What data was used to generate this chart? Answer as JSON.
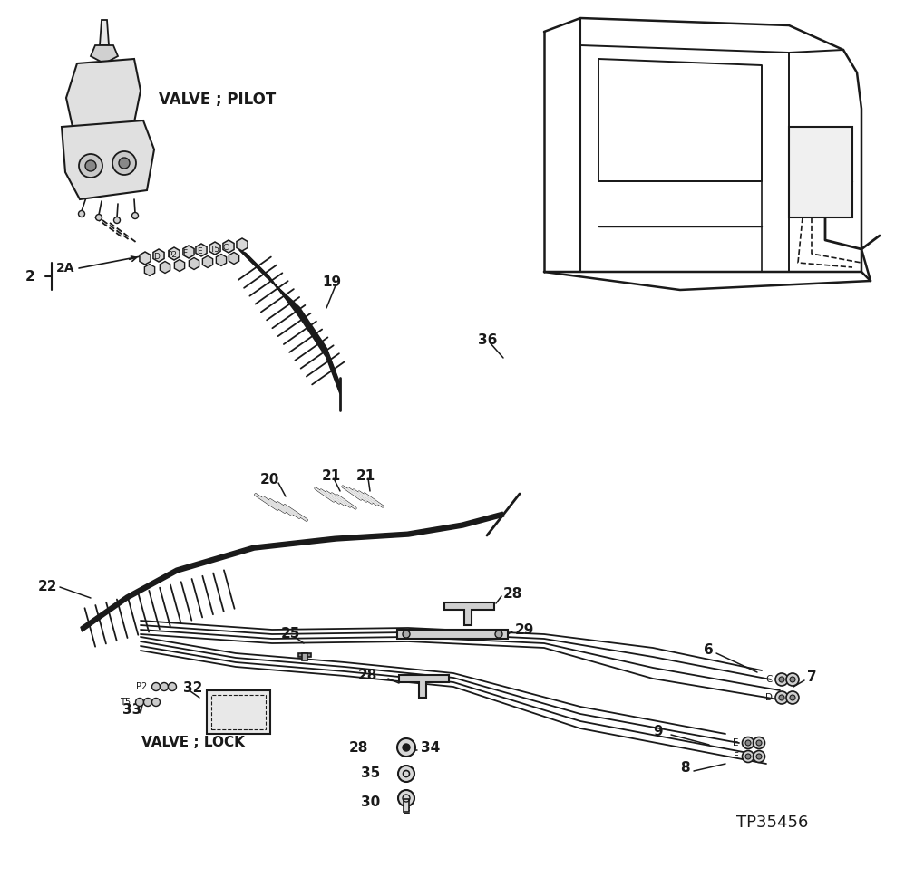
{
  "bg_color": "#ffffff",
  "line_color": "#1a1a1a",
  "labels": {
    "valve_pilot": "VALVE ; PILOT",
    "valve_lock": "VALVE ; LOCK",
    "tp": "TP35456",
    "n2": "2",
    "n2A": "2A",
    "n6": "6",
    "n7": "7",
    "n8": "8",
    "n9": "9",
    "n19": "19",
    "n20": "20",
    "n21a": "21",
    "n21b": "21",
    "n22": "22",
    "n25": "25",
    "n28a": "28",
    "n28b": "28",
    "n29": "29",
    "n30": "30",
    "n32": "32",
    "n33": "33",
    "n34": "34",
    "n35": "35",
    "n36": "36"
  },
  "figsize": [
    9.98,
    9.68
  ],
  "dpi": 100
}
